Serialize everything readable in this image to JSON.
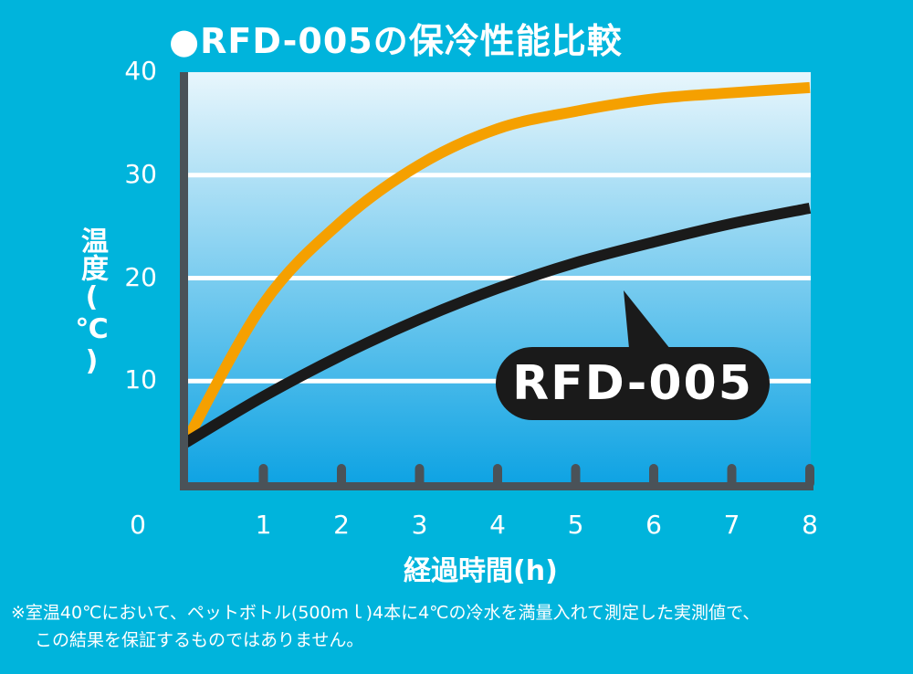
{
  "chart_data": {
    "type": "line",
    "title": "●RFD-005の保冷性能比較",
    "xlabel": "経過時間(h)",
    "ylabel": "温度(℃)",
    "x": [
      0,
      1,
      2,
      3,
      4,
      5,
      6,
      7,
      8
    ],
    "xlim": [
      0,
      8
    ],
    "ylim": [
      0,
      40
    ],
    "y_ticks": [
      "0",
      "10",
      "20",
      "30",
      "40"
    ],
    "x_ticks": [
      "1",
      "2",
      "3",
      "4",
      "5",
      "6",
      "7",
      "8"
    ],
    "grid": true,
    "series": [
      {
        "name": "",
        "color": "#f5a000",
        "values": [
          4,
          17.5,
          25.5,
          31,
          34.5,
          36.2,
          37.4,
          38,
          38.5
        ]
      },
      {
        "name": "RFD-005",
        "color": "#1a1a1a",
        "values": [
          4,
          8.5,
          12.5,
          16,
          19,
          21.5,
          23.5,
          25.3,
          26.8
        ]
      }
    ],
    "annotation": "RFD-005",
    "background_gradient": [
      "#e8f6fc",
      "#0ea3e3"
    ],
    "axis_color": "#4a5258"
  },
  "footnote": {
    "line1": "※室温40℃において、ペットボトル(500ｍｌ)4本に4℃の冷水を満量入れて測定した実測値で、",
    "line2": "この結果を保証するものではありません。"
  }
}
